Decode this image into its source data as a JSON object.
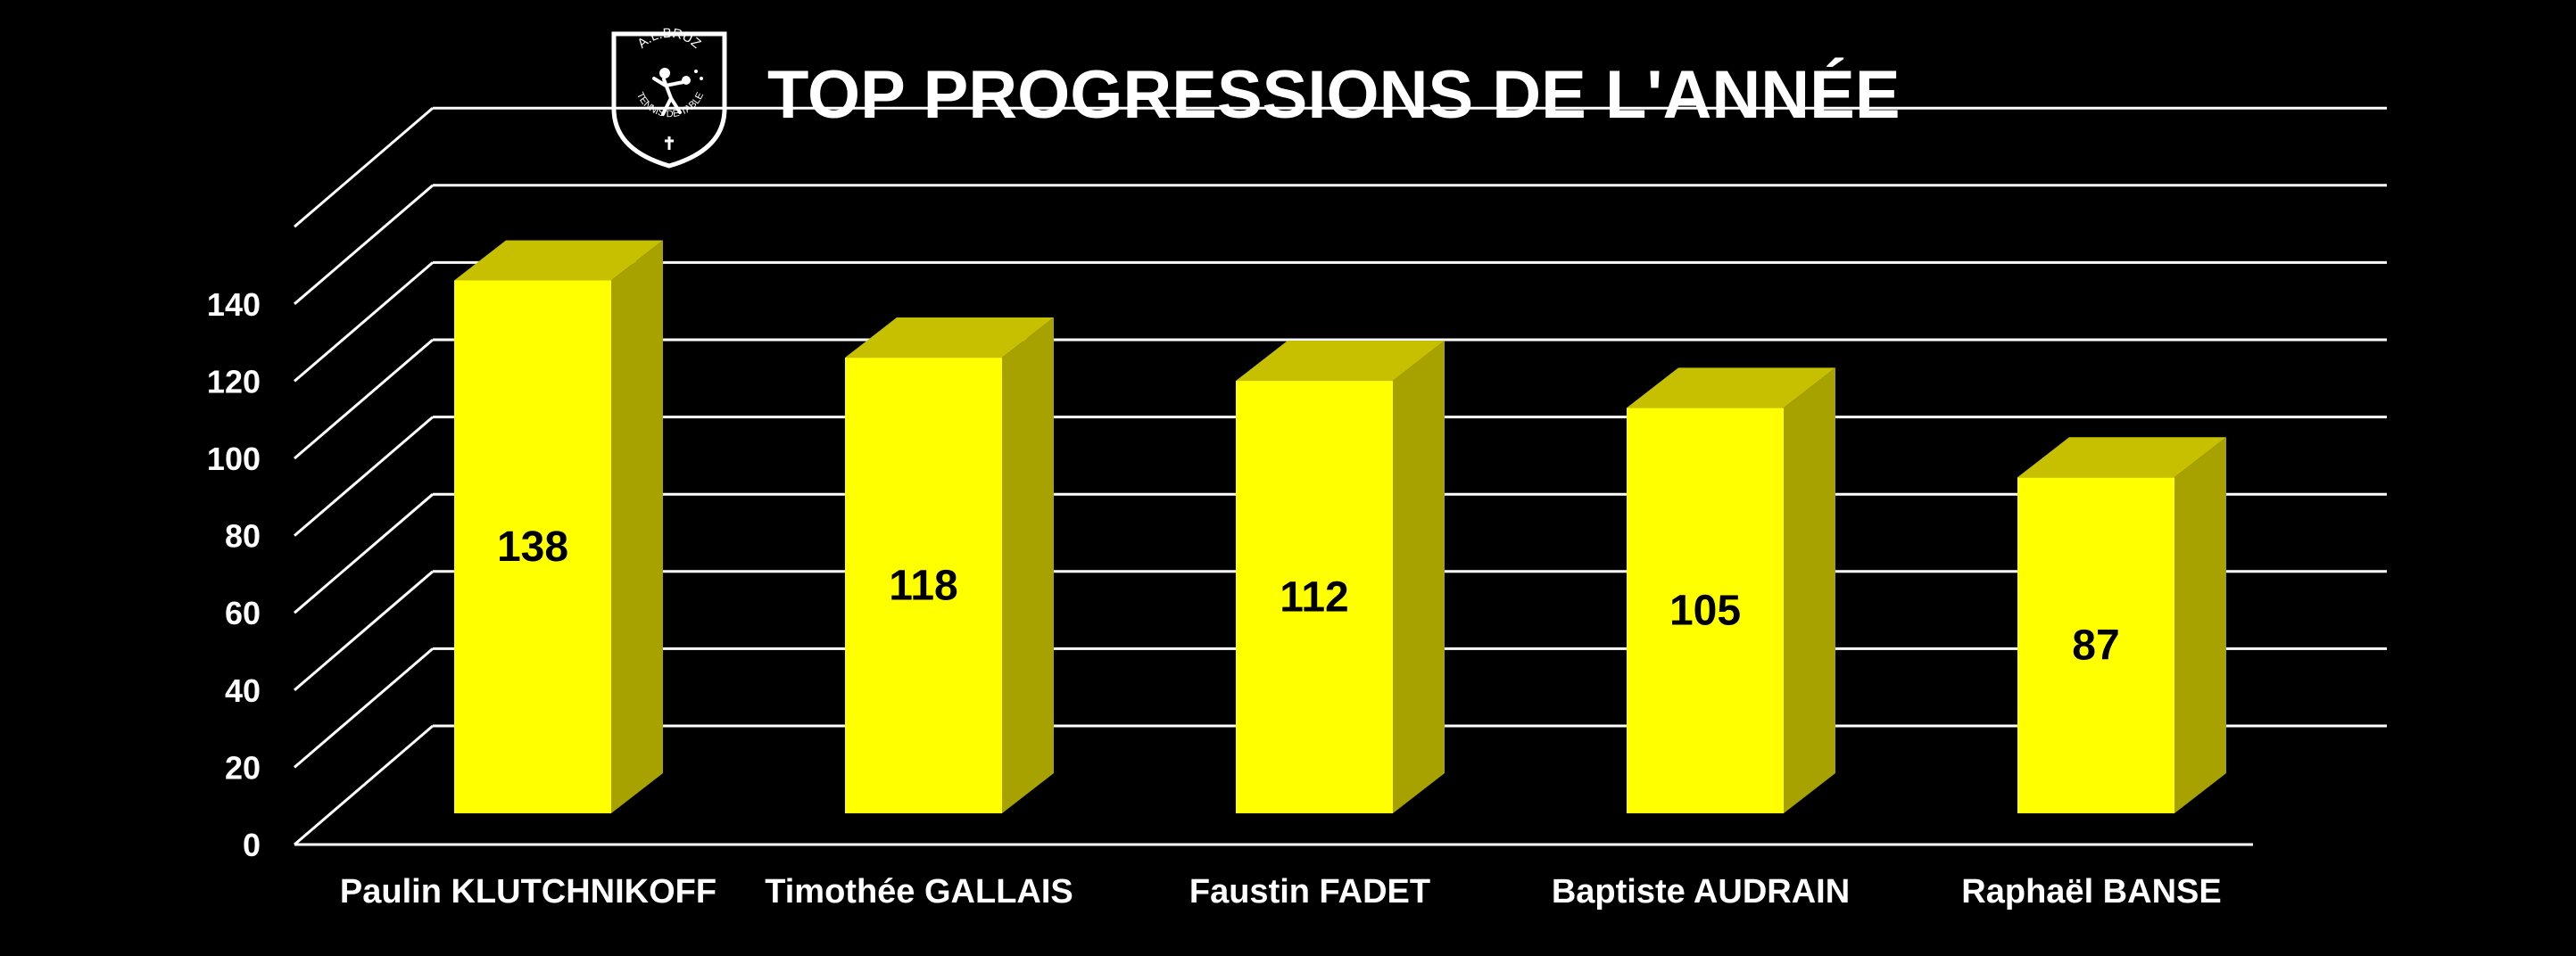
{
  "logo": {
    "top_text": "A.L.BRUZ",
    "bottom_text": "TENNIS DE TABLE"
  },
  "chart_data": {
    "type": "bar",
    "title": "TOP PROGRESSIONS DE L'ANNÉE",
    "categories": [
      "Paulin KLUTCHNIKOFF",
      "Timothée GALLAIS",
      "Faustin FADET",
      "Baptiste AUDRAIN",
      "Raphaël BANSE"
    ],
    "values": [
      138,
      118,
      112,
      105,
      87
    ],
    "data_labels": [
      "138",
      "118",
      "112",
      "105",
      "87"
    ],
    "y_ticks": [
      "0",
      "20",
      "40",
      "60",
      "80",
      "100",
      "120",
      "140"
    ],
    "ylim": [
      0,
      160
    ],
    "grid": true,
    "legend": "none",
    "colors": {
      "background": "#000000",
      "bar_front": "#ffff00",
      "bar_top": "#c6c000",
      "bar_side": "#a8a200",
      "grid": "#ffffff",
      "text": "#ffffff"
    }
  }
}
